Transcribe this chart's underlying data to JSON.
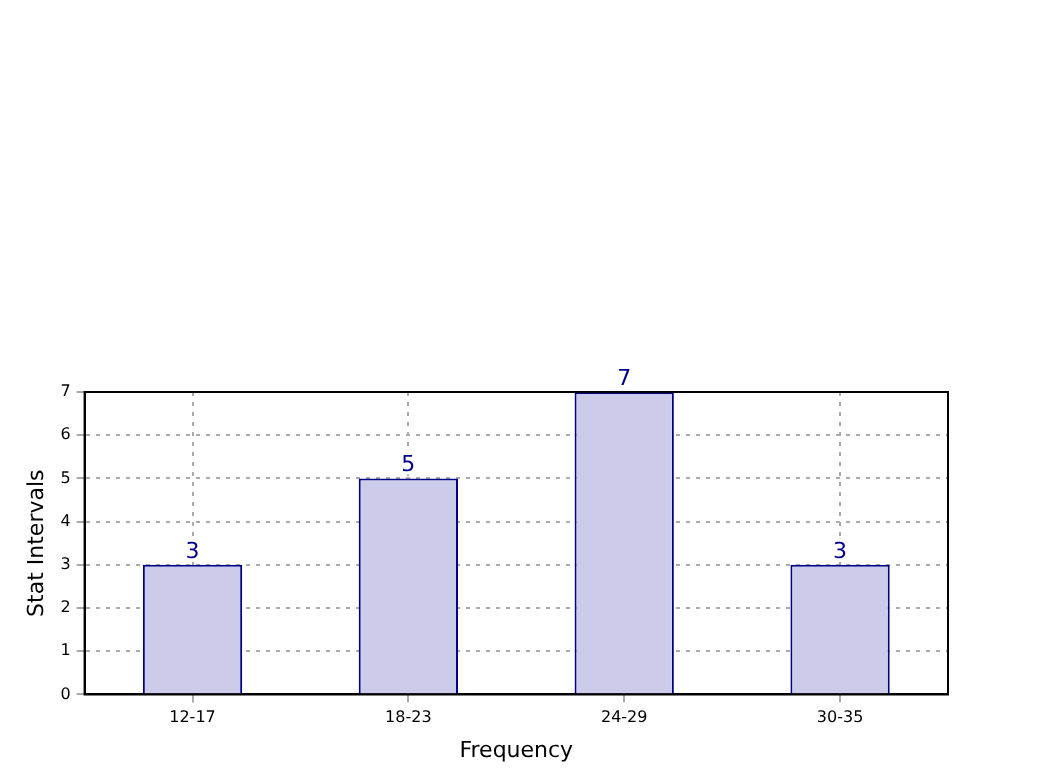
{
  "chart_data": {
    "type": "bar",
    "xlabel": "Frequency",
    "ylabel": "Stat Intervals",
    "categories": [
      "12-17",
      "18-23",
      "24-29",
      "30-35"
    ],
    "values": [
      3,
      5,
      7,
      3
    ],
    "color": "#ccccea",
    "ylim": [
      0,
      7
    ],
    "yticks": [
      0,
      1,
      2,
      3,
      4,
      5,
      6,
      7
    ],
    "grid": true,
    "data_labels": true,
    "legend": false
  }
}
